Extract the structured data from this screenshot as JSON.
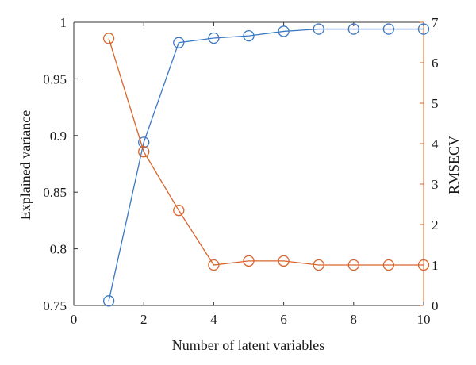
{
  "chart_data": {
    "type": "line",
    "xlabel": "Number of latent variables",
    "xlim": [
      0,
      10
    ],
    "x_ticks": [
      0,
      2,
      4,
      6,
      8,
      10
    ],
    "y_left": {
      "label": "Explained variance",
      "lim": [
        0.75,
        1.0
      ],
      "ticks": [
        0.75,
        0.8,
        0.85,
        0.9,
        0.95,
        1
      ],
      "tick_labels": [
        "0.75",
        "0.8",
        "0.85",
        "0.9",
        "0.95",
        "1"
      ]
    },
    "y_right": {
      "label": "RMSECV",
      "lim": [
        0,
        7
      ],
      "ticks": [
        0,
        1,
        2,
        3,
        4,
        5,
        6,
        7
      ]
    },
    "series": [
      {
        "axis": "left",
        "color": "#3a78c4",
        "marker": "open-circle",
        "x": [
          1,
          2,
          3,
          4,
          5,
          6,
          7,
          8,
          9,
          10
        ],
        "y": [
          0.754,
          0.894,
          0.982,
          0.986,
          0.988,
          0.992,
          0.994,
          0.994,
          0.994,
          0.994
        ]
      },
      {
        "axis": "right",
        "color": "#d9642a",
        "marker": "open-circle",
        "x": [
          1,
          2,
          3,
          4,
          5,
          6,
          7,
          8,
          9,
          10
        ],
        "y": [
          6.6,
          3.8,
          2.35,
          1.0,
          1.1,
          1.1,
          1.0,
          1.0,
          1.0,
          1.0
        ]
      }
    ],
    "grid": false
  }
}
